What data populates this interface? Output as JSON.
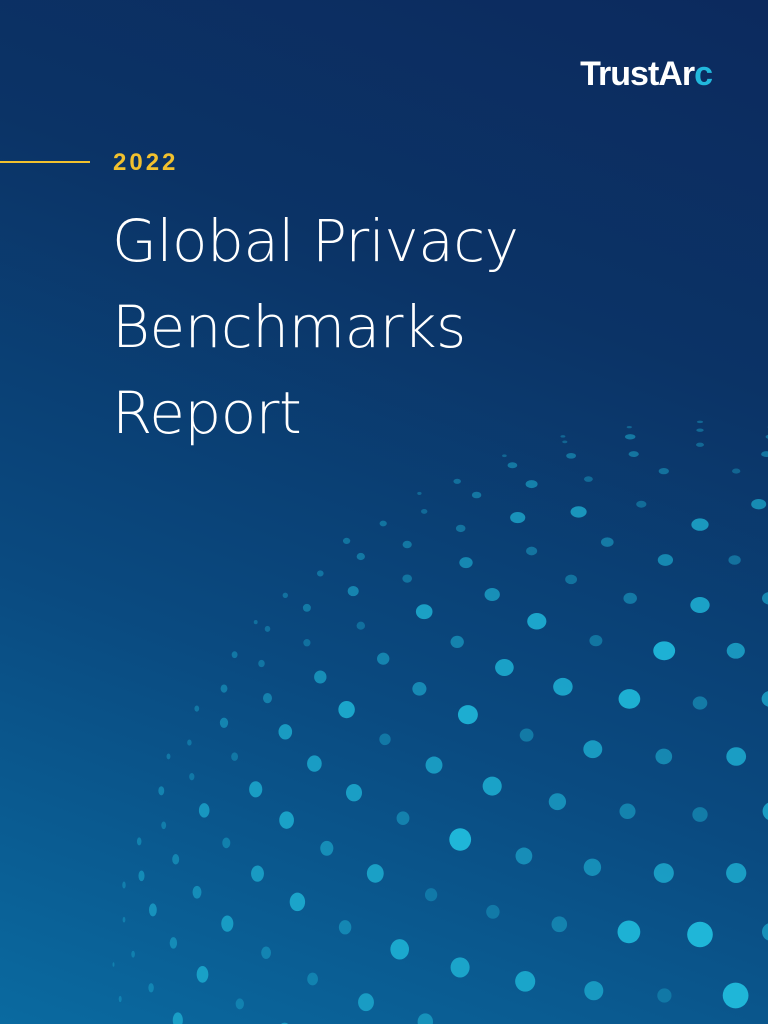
{
  "brand": {
    "logo_main": "TrustAr",
    "logo_accent": "c",
    "accent_color": "#22b8dc"
  },
  "report": {
    "year": "2022",
    "year_color": "#f2c12e",
    "title_lines": [
      "Global Privacy",
      "Benchmarks",
      "Report"
    ]
  },
  "colors": {
    "background_dark": "#0c2a5e",
    "background_light": "#0a6aa0",
    "dot_color": "#1fb6d8"
  },
  "icons": {
    "globe": "dotted-globe-graphic"
  }
}
